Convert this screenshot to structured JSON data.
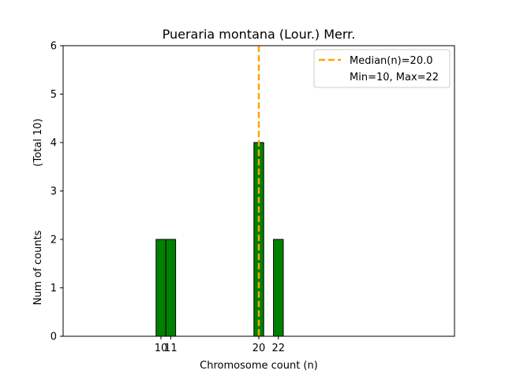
{
  "chart_data": {
    "type": "bar",
    "title": "Pueraria montana (Lour.) Merr.",
    "xlabel": "Chromosome count (n)",
    "ylabel": "Num of counts",
    "ylabel_total": "(Total 10)",
    "xlim": [
      0,
      40
    ],
    "ylim": [
      0,
      6
    ],
    "yticks": [
      0,
      1,
      2,
      3,
      4,
      5,
      6
    ],
    "xticks": [
      10,
      11,
      20,
      22
    ],
    "bins": [
      {
        "x": 10,
        "count": 2
      },
      {
        "x": 11,
        "count": 2
      },
      {
        "x": 20,
        "count": 4
      },
      {
        "x": 22,
        "count": 2
      }
    ],
    "baseline_span": [
      3,
      25
    ],
    "median": 20.0,
    "legend": {
      "placement": "top-right",
      "entries": [
        "Median(n)=20.0",
        "Min=10, Max=22"
      ]
    },
    "colors": {
      "bar_fill": "#008000",
      "bar_edge": "#000000",
      "median_line": "#FFA500"
    }
  }
}
